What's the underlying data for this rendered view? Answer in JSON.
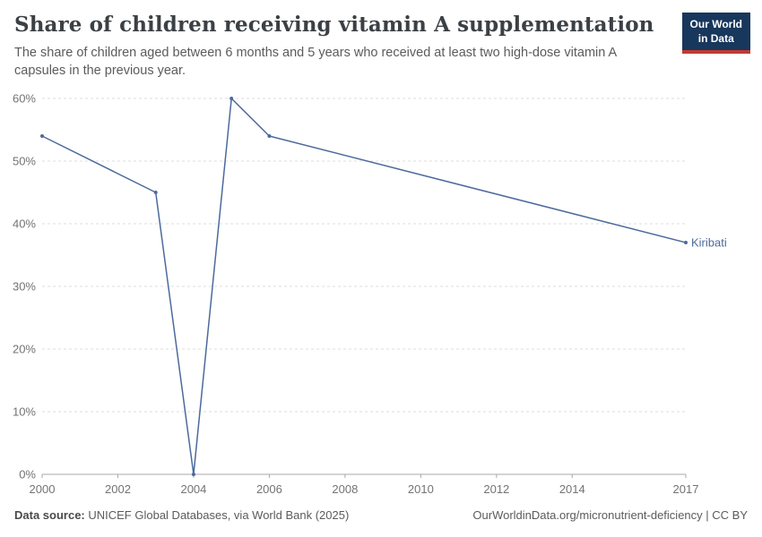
{
  "header": {
    "title": "Share of children receiving vitamin A supplementation",
    "subtitle": "The share of children aged between 6 months and 5 years who received at least two high-dose vitamin A capsules in the previous year.",
    "logo": {
      "line1": "Our World",
      "line2": "in Data"
    }
  },
  "footer": {
    "source_label": "Data source:",
    "source_text": " UNICEF Global Databases, via World Bank (2025)",
    "attribution": "OurWorldinData.org/micronutrient-deficiency | CC BY"
  },
  "colors": {
    "line": "#4C6A9C",
    "end_label": "#4C6A9C",
    "gridline": "#dddddd",
    "axis_line": "#a8a8a8",
    "tick_label": "#737373",
    "logo_bg": "#18375c",
    "logo_red": "#c23a33"
  },
  "chart_data": {
    "type": "line",
    "title": "Share of children receiving vitamin A supplementation",
    "series": [
      {
        "name": "Kiribati",
        "points": [
          [
            2000,
            54
          ],
          [
            2003,
            45
          ],
          [
            2004,
            0
          ],
          [
            2005,
            60
          ],
          [
            2006,
            54
          ],
          [
            2017,
            37
          ]
        ]
      }
    ],
    "x_ticks": [
      2000,
      2002,
      2004,
      2006,
      2008,
      2010,
      2012,
      2014,
      2017
    ],
    "y_ticks": [
      0,
      10,
      20,
      30,
      40,
      50,
      60
    ],
    "y_tick_suffix": "%",
    "xlim": [
      2000,
      2017
    ],
    "ylim": [
      0,
      60
    ],
    "grid": "horizontal-dashed",
    "legend": "end-of-line-label"
  }
}
